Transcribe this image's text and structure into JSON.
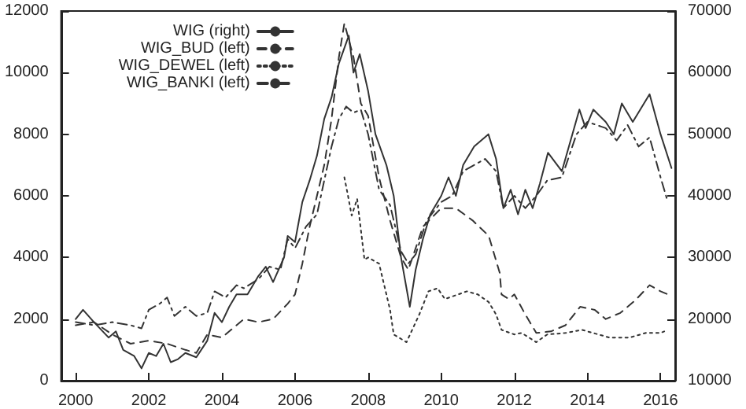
{
  "chart_data": {
    "type": "line",
    "xlim": [
      1999.6,
      2016.4
    ],
    "xticks": [
      2000,
      2002,
      2004,
      2006,
      2008,
      2010,
      2012,
      2014,
      2016
    ],
    "ylim": [
      0,
      12000
    ],
    "yticks": [
      0,
      2000,
      4000,
      6000,
      8000,
      10000,
      12000
    ],
    "y2lim": [
      10000,
      70000
    ],
    "y2ticks": [
      10000,
      20000,
      30000,
      40000,
      50000,
      60000,
      70000
    ],
    "grid": false,
    "legend": "top left",
    "marker": "none",
    "series": [
      {
        "name": "WIG (right)",
        "color": "#333333",
        "axis": "y2",
        "line_style": "solid",
        "x": [
          2000.0,
          2000.2,
          2000.5,
          2000.9,
          2001.1,
          2001.3,
          2001.6,
          2001.8,
          2002.0,
          2002.2,
          2002.4,
          2002.6,
          2002.8,
          2003.0,
          2003.3,
          2003.6,
          2003.8,
          2004.0,
          2004.2,
          2004.4,
          2004.7,
          2005.0,
          2005.2,
          2005.4,
          2005.7,
          2005.8,
          2006.0,
          2006.2,
          2006.4,
          2006.6,
          2006.8,
          2007.0,
          2007.2,
          2007.47,
          2007.6,
          2007.77,
          2008.0,
          2008.2,
          2008.5,
          2008.7,
          2008.9,
          2009.14,
          2009.3,
          2009.5,
          2009.7,
          2010.0,
          2010.2,
          2010.4,
          2010.6,
          2010.9,
          2011.29,
          2011.5,
          2011.7,
          2011.9,
          2012.1,
          2012.3,
          2012.5,
          2012.7,
          2012.92,
          2013.3,
          2013.78,
          2013.95,
          2014.16,
          2014.5,
          2014.72,
          2014.94,
          2015.24,
          2015.7,
          2016.0,
          2016.3
        ],
        "values": [
          20000,
          21500,
          19500,
          17000,
          18000,
          15000,
          14000,
          12000,
          14500,
          14000,
          16000,
          13000,
          13500,
          14500,
          13800,
          16500,
          21000,
          19500,
          22000,
          24000,
          24000,
          27000,
          28500,
          26000,
          30000,
          33500,
          32500,
          39000,
          42500,
          46500,
          52500,
          56000,
          61500,
          66000,
          60000,
          63000,
          57000,
          50000,
          45000,
          40000,
          30000,
          22000,
          28000,
          33000,
          37000,
          40000,
          43000,
          40000,
          45000,
          48000,
          50000,
          46000,
          38000,
          41000,
          37000,
          41000,
          38000,
          42000,
          47000,
          44000,
          54000,
          51000,
          54000,
          52000,
          50000,
          55000,
          52000,
          56500,
          50000,
          44500
        ]
      },
      {
        "name": "WIG_BUD (left)",
        "color": "#333333",
        "line_style": "dashed",
        "x": [
          2000.0,
          2000.5,
          2001.0,
          2001.5,
          2002.0,
          2002.5,
          2003.0,
          2003.3,
          2003.6,
          2004.0,
          2004.3,
          2004.6,
          2005.0,
          2005.4,
          2005.8,
          2006.0,
          2006.2,
          2006.4,
          2006.6,
          2006.8,
          2007.0,
          2007.2,
          2007.35,
          2007.6,
          2007.8,
          2008.0,
          2008.3,
          2008.6,
          2008.9,
          2009.1,
          2009.5,
          2010.0,
          2010.4,
          2010.86,
          2011.3,
          2011.6,
          2011.65,
          2011.85,
          2012.0,
          2012.3,
          2012.6,
          2013.0,
          2013.4,
          2013.8,
          2014.2,
          2014.5,
          2014.9,
          2015.3,
          2015.7,
          2016.0,
          2016.2
        ],
        "values": [
          1800,
          1900,
          1500,
          1200,
          1300,
          1200,
          1000,
          900,
          1500,
          1400,
          1700,
          2000,
          1900,
          2000,
          2500,
          2800,
          3800,
          5000,
          6000,
          7000,
          8500,
          10500,
          11600,
          10500,
          9000,
          8600,
          6600,
          5200,
          4000,
          3600,
          5000,
          5600,
          5600,
          5200,
          4700,
          3500,
          2800,
          2650,
          2800,
          2150,
          1550,
          1600,
          1800,
          2400,
          2300,
          2000,
          2200,
          2600,
          3100,
          2900,
          2800
        ]
      },
      {
        "name": "WIG_DEWEL (left)",
        "color": "#333333",
        "line_style": "dotted",
        "x": [
          2007.35,
          2007.45,
          2007.55,
          2007.7,
          2007.9,
          2008.0,
          2008.3,
          2008.6,
          2008.7,
          2009.05,
          2009.4,
          2009.65,
          2009.9,
          2010.1,
          2010.7,
          2011.0,
          2011.3,
          2011.5,
          2011.65,
          2012.0,
          2012.2,
          2012.6,
          2012.9,
          2013.4,
          2013.85,
          2014.6,
          2015.15,
          2015.6,
          2016.0,
          2016.1
        ],
        "values": [
          6600,
          6000,
          5360,
          5900,
          3930,
          4000,
          3800,
          2300,
          1500,
          1250,
          2150,
          2900,
          3000,
          2650,
          2900,
          2800,
          2550,
          2150,
          1650,
          1500,
          1550,
          1250,
          1500,
          1550,
          1650,
          1400,
          1400,
          1550,
          1550,
          1600
        ]
      },
      {
        "name": "WIG_BANKI (left)",
        "color": "#333333",
        "line_style": "dashdot",
        "x": [
          2000.0,
          2000.5,
          2001.0,
          2001.5,
          2001.8,
          2002.0,
          2002.3,
          2002.5,
          2002.7,
          2003.0,
          2003.3,
          2003.6,
          2003.8,
          2004.1,
          2004.4,
          2004.6,
          2005.0,
          2005.3,
          2005.6,
          2005.8,
          2006.0,
          2006.3,
          2006.6,
          2006.8,
          2007.0,
          2007.2,
          2007.4,
          2007.6,
          2007.8,
          2008.0,
          2008.3,
          2008.6,
          2008.9,
          2009.1,
          2009.3,
          2009.6,
          2010.0,
          2010.3,
          2010.6,
          2010.9,
          2011.2,
          2011.5,
          2011.7,
          2012.0,
          2012.3,
          2012.6,
          2012.9,
          2013.3,
          2013.7,
          2014.0,
          2014.5,
          2014.8,
          2015.1,
          2015.4,
          2015.7,
          2016.0,
          2016.2
        ],
        "values": [
          1900,
          1800,
          1900,
          1800,
          1700,
          2300,
          2500,
          2700,
          2100,
          2400,
          2100,
          2200,
          2900,
          2700,
          3100,
          3000,
          3300,
          3700,
          3600,
          4600,
          4300,
          5000,
          5400,
          6500,
          7600,
          8500,
          8900,
          8700,
          8800,
          8000,
          6200,
          5700,
          4200,
          3800,
          4100,
          5200,
          5800,
          6000,
          6800,
          7000,
          7200,
          6800,
          5600,
          6000,
          5600,
          6000,
          6500,
          6600,
          8000,
          8400,
          8200,
          7800,
          8300,
          7600,
          7900,
          6600,
          5800
        ]
      }
    ]
  }
}
